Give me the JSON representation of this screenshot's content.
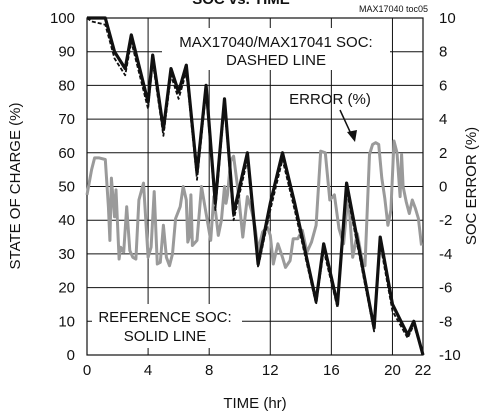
{
  "top_title": "SOC vs. TIME",
  "figure_id": "MAX17040 toc05",
  "annotations": {
    "max_soc_line1": "MAX17040/MAX17041 SOC:",
    "max_soc_line2": "DASHED LINE",
    "error_label": "ERROR (%)",
    "ref_line1": "REFERENCE SOC:",
    "ref_line2": "SOLID LINE"
  },
  "colors": {
    "soc": "#111111",
    "error": "#9a9a9a",
    "axis": "#111111",
    "grid": "#111111"
  },
  "chart_data": {
    "type": "line",
    "title": "SOC vs. TIME",
    "xlabel": "TIME (hr)",
    "ylabel": "STATE OF CHARGE (%)",
    "y2label": "SOC ERROR (%)",
    "xlim": [
      0,
      22
    ],
    "ylim": [
      0,
      100
    ],
    "y2lim": [
      -10,
      10
    ],
    "xticks": [
      "0",
      "4",
      "8",
      "12",
      "16",
      "20",
      "22"
    ],
    "xtick_values": [
      0,
      4,
      8,
      12,
      16,
      20,
      22
    ],
    "yticks": [
      "0",
      "10",
      "20",
      "30",
      "40",
      "50",
      "60",
      "70",
      "80",
      "90",
      "100"
    ],
    "y2ticks": [
      "-10",
      "-8",
      "-6",
      "-4",
      "-2",
      "0",
      "2",
      "4",
      "6",
      "8",
      "10"
    ],
    "grid": true,
    "series": [
      {
        "name": "REFERENCE SOC",
        "axis": "left",
        "style": "solid",
        "x": [
          0,
          0.3,
          1.2,
          1.8,
          2.5,
          2.9,
          4.0,
          4.3,
          5.0,
          5.5,
          6.0,
          6.5,
          7.2,
          7.8,
          8.4,
          9.0,
          9.6,
          10.5,
          11.2,
          12.0,
          12.8,
          13.6,
          15.0,
          15.5,
          16.4,
          17.0,
          18.8,
          19.2,
          20.0,
          21.0,
          21.4,
          22.0
        ],
        "values": [
          100,
          100,
          100,
          90,
          85,
          95,
          75,
          89,
          67,
          85,
          78,
          86,
          54,
          80,
          45,
          76,
          42,
          60,
          27,
          45,
          60,
          45,
          16,
          33,
          15,
          51,
          8,
          35,
          15,
          6,
          10,
          0
        ]
      },
      {
        "name": "MAX17040/MAX17041 SOC",
        "axis": "left",
        "style": "dashed",
        "x": [
          0,
          0.3,
          1.2,
          1.8,
          2.5,
          2.9,
          4.0,
          4.3,
          5.0,
          5.5,
          6.0,
          6.5,
          7.2,
          7.8,
          8.4,
          9.0,
          9.6,
          10.5,
          11.2,
          12.0,
          12.8,
          13.6,
          15.0,
          15.5,
          16.4,
          17.0,
          18.8,
          19.2,
          20.0,
          21.0,
          21.4,
          22.0
        ],
        "values": [
          100,
          99,
          98,
          88,
          83,
          93,
          73,
          87,
          65,
          83,
          76,
          84,
          52,
          78,
          43,
          74,
          40,
          58,
          26,
          43,
          58,
          43,
          15,
          31,
          14,
          49,
          7,
          33,
          13,
          5,
          9,
          0
        ]
      },
      {
        "name": "ERROR (%)",
        "axis": "right",
        "style": "solid",
        "x": [
          0,
          0.3,
          0.5,
          0.8,
          1.2,
          1.4,
          1.5,
          1.6,
          1.8,
          1.9,
          2.1,
          2.2,
          2.4,
          2.6,
          2.8,
          3.0,
          3.2,
          3.4,
          3.7,
          4.0,
          4.2,
          4.4,
          4.6,
          4.8,
          5.0,
          5.2,
          5.4,
          5.6,
          5.8,
          6.1,
          6.3,
          6.5,
          6.6,
          6.7,
          6.8,
          6.9,
          7.2,
          7.5,
          7.8,
          8.1,
          8.3,
          8.6,
          8.8,
          9.0,
          9.1,
          9.2,
          9.4,
          9.6,
          9.9,
          10.2,
          10.5,
          10.8,
          11.0,
          11.2,
          11.5,
          11.8,
          12.0,
          12.2,
          12.5,
          12.8,
          13.0,
          13.3,
          13.5,
          13.8,
          14.1,
          14.4,
          14.7,
          15.0,
          15.3,
          15.6,
          15.9,
          16.2,
          16.5,
          16.8,
          17.1,
          17.4,
          17.7,
          18.0,
          18.2,
          18.5,
          18.7,
          18.9,
          19.1,
          19.3,
          19.5,
          19.7,
          19.9,
          20.1,
          20.3,
          20.5,
          20.6,
          20.7,
          20.9,
          21.1,
          21.3,
          21.5,
          21.7,
          21.9
        ],
        "values": [
          -0.5,
          1.0,
          1.7,
          1.7,
          1.6,
          -1.2,
          -3.2,
          0.5,
          -1.8,
          -0.2,
          -4.3,
          -3.6,
          -3.9,
          -1.2,
          -3.8,
          -4.2,
          -4.3,
          -0.8,
          0.2,
          -4.2,
          -3.6,
          -0.3,
          -4.6,
          -4.5,
          -2.3,
          -4.2,
          -4.7,
          -4.0,
          -1.9,
          -1.2,
          0.0,
          -0.8,
          -3.3,
          -3.0,
          -0.5,
          -3.5,
          -3.2,
          0.0,
          -1.6,
          -3.2,
          -0.6,
          -2.9,
          -2.0,
          0.0,
          -1.0,
          -0.5,
          1.5,
          1.8,
          -0.3,
          -3.0,
          -0.6,
          -1.5,
          -2.4,
          -3.8,
          -2.7,
          -2.4,
          -2.9,
          -4.6,
          -3.4,
          -4.2,
          -4.8,
          -4.4,
          -3.1,
          -3.1,
          -2.6,
          -3.9,
          -3.3,
          -2.3,
          2.1,
          2.0,
          -0.8,
          -0.5,
          -2.5,
          -3.4,
          -0.4,
          -4.2,
          -2.8,
          -4.3,
          -4.7,
          1.9,
          2.5,
          2.6,
          2.5,
          0.5,
          -0.7,
          -2.3,
          -1.4,
          2.7,
          2.0,
          -0.6,
          1.9,
          0.0,
          -0.9,
          -1.6,
          -0.8,
          -1.3,
          -1.9,
          -3.5
        ]
      }
    ]
  }
}
